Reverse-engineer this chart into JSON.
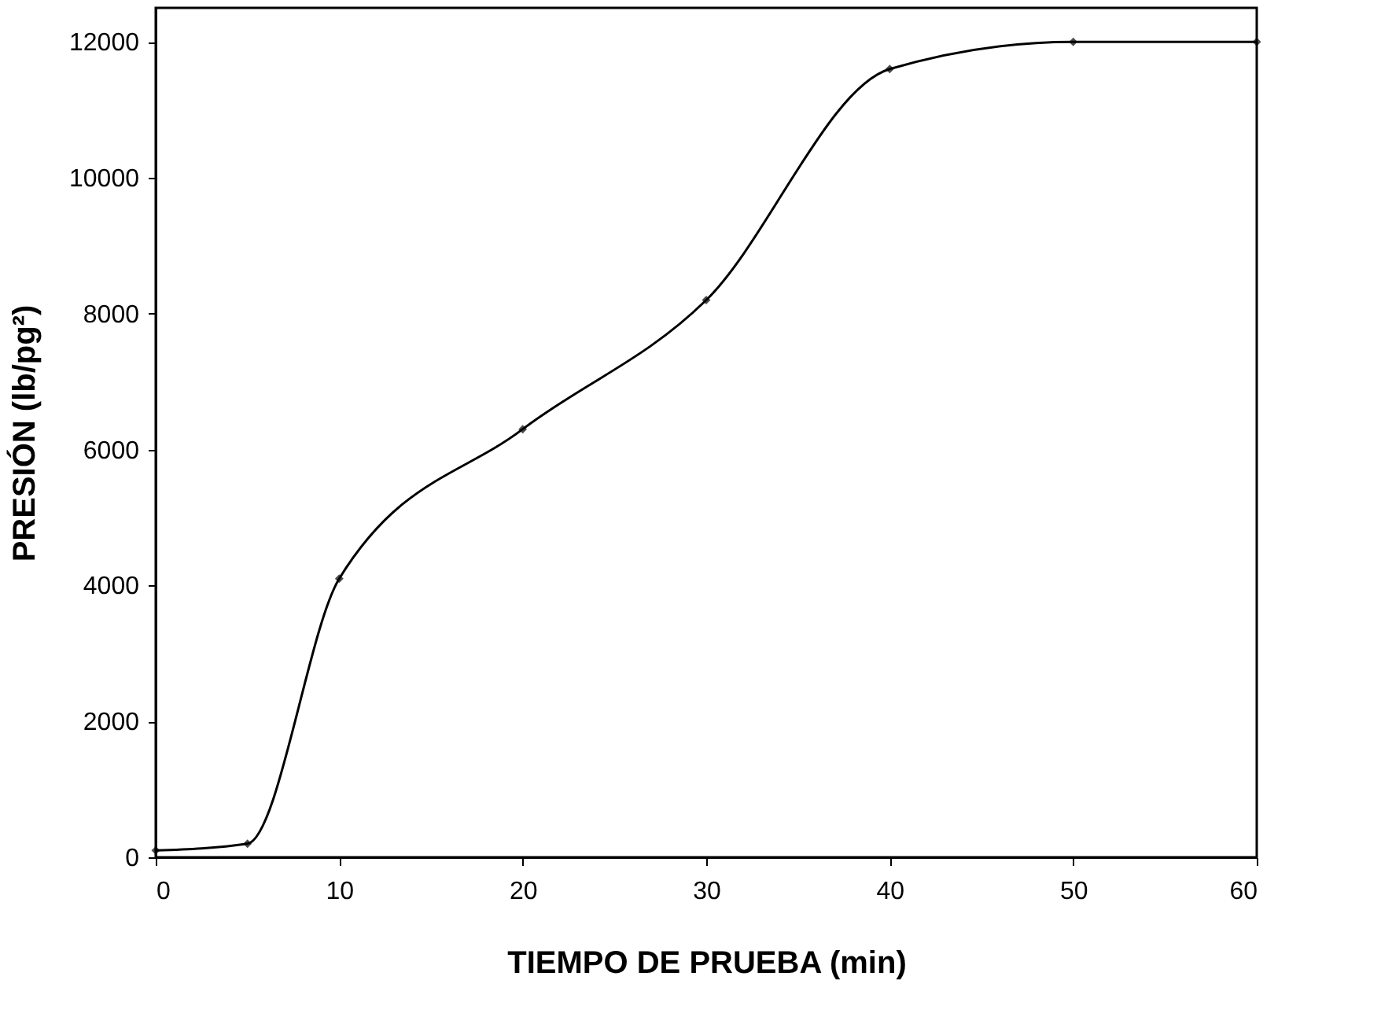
{
  "chart_data": {
    "type": "line",
    "xlabel": "TIEMPO DE PRUEBA (min)",
    "ylabel": "PRESIÓN (lb/pg²)",
    "x": [
      0,
      5,
      10,
      20,
      30,
      40,
      50,
      60
    ],
    "series": [
      {
        "color": "#000000",
        "values": [
          100,
          200,
          4100,
          6300,
          8200,
          11600,
          12000,
          12000
        ]
      }
    ],
    "xlim": [
      0,
      60
    ],
    "xticks": [
      0,
      10,
      20,
      30,
      40,
      50,
      60
    ],
    "ylim": [
      0,
      12500
    ],
    "yticks": [
      0,
      2000,
      4000,
      6000,
      8000,
      10000,
      12000
    ],
    "grid": false,
    "marker": "diamond",
    "line_style": "solid"
  }
}
